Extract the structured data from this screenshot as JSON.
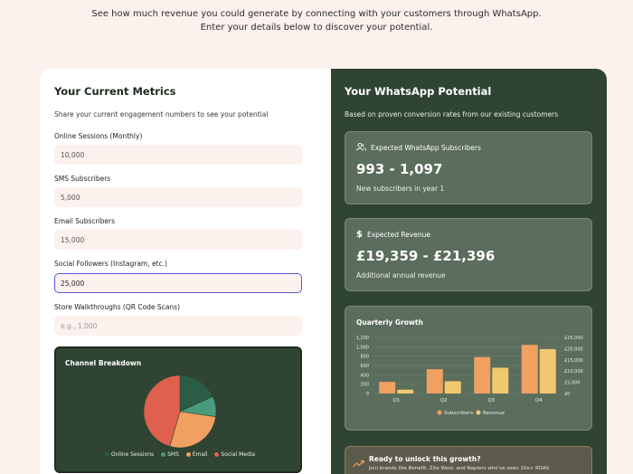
{
  "intro": {
    "line1": "See how much revenue you could generate by connecting with your customers through WhatsApp.",
    "line2": "Enter your details below to discover your potential."
  },
  "metrics": {
    "title": "Your Current Metrics",
    "subtitle": "Share your current engagement numbers to see your potential",
    "fields": [
      {
        "label": "Online Sessions (Monthly)",
        "value": "10,000",
        "placeholder": ""
      },
      {
        "label": "SMS Subscribers",
        "value": "5,000",
        "placeholder": ""
      },
      {
        "label": "Email Subscribers",
        "value": "15,000",
        "placeholder": ""
      },
      {
        "label": "Social Followers (Instagram, etc.)",
        "value": "25,000",
        "placeholder": ""
      },
      {
        "label": "Store Walkthroughs (QR Code Scans)",
        "value": "",
        "placeholder": "e.g., 1,000"
      }
    ]
  },
  "channel": {
    "title": "Channel Breakdown",
    "legend": [
      "Online Sessions",
      "SMS",
      "Email",
      "Social Media"
    ]
  },
  "channel_chart": {
    "type": "pie",
    "labels": [
      "Online Sessions",
      "SMS",
      "Email",
      "Social Media"
    ],
    "values": [
      10000,
      5000,
      15000,
      25000
    ],
    "colors": [
      "#2a5c46",
      "#4a9a7c",
      "#f0a060",
      "#e0604e"
    ]
  },
  "potential": {
    "title": "Your WhatsApp Potential",
    "subtitle": "Based on proven conversion rates from our existing customers",
    "subscribers": {
      "heading": "Expected WhatsApp Subscribers",
      "value": "993 - 1,097",
      "note": "New subscribers in year 1",
      "icon": "users-icon"
    },
    "revenue": {
      "heading": "Expected Revenue",
      "value": "£19,359 - £21,396",
      "note": "Additional annual revenue",
      "icon": "dollar-icon"
    }
  },
  "growth": {
    "title": "Quarterly Growth",
    "legend": [
      "Subscribers",
      "Revenue"
    ]
  },
  "chart_data": {
    "type": "bar",
    "title": "Quarterly Growth",
    "categories": [
      "Q1",
      "Q2",
      "Q3",
      "Q4"
    ],
    "series": [
      {
        "name": "Subscribers",
        "axis": "left",
        "values": [
          248,
          520,
          780,
          1040
        ],
        "color": "#f0a060"
      },
      {
        "name": "Revenue",
        "axis": "right",
        "values": [
          1700,
          5500,
          11500,
          19800
        ],
        "color": "#f0c870"
      }
    ],
    "y_left_ticks": [
      "0",
      "200",
      "400",
      "600",
      "800",
      "1,000",
      "1,200"
    ],
    "y_right_ticks": [
      "£0",
      "£5,000",
      "£10,000",
      "£15,000",
      "£20,000",
      "£25,000"
    ],
    "ylim_left": [
      0,
      1200
    ],
    "ylim_right": [
      0,
      25000
    ]
  },
  "cta": {
    "title": "Ready to unlock this growth?",
    "subtitle": "Join brands like Benefit, Zita West, and Napiers who've seen 10x+ ROAS",
    "icon": "trend-up-icon"
  }
}
